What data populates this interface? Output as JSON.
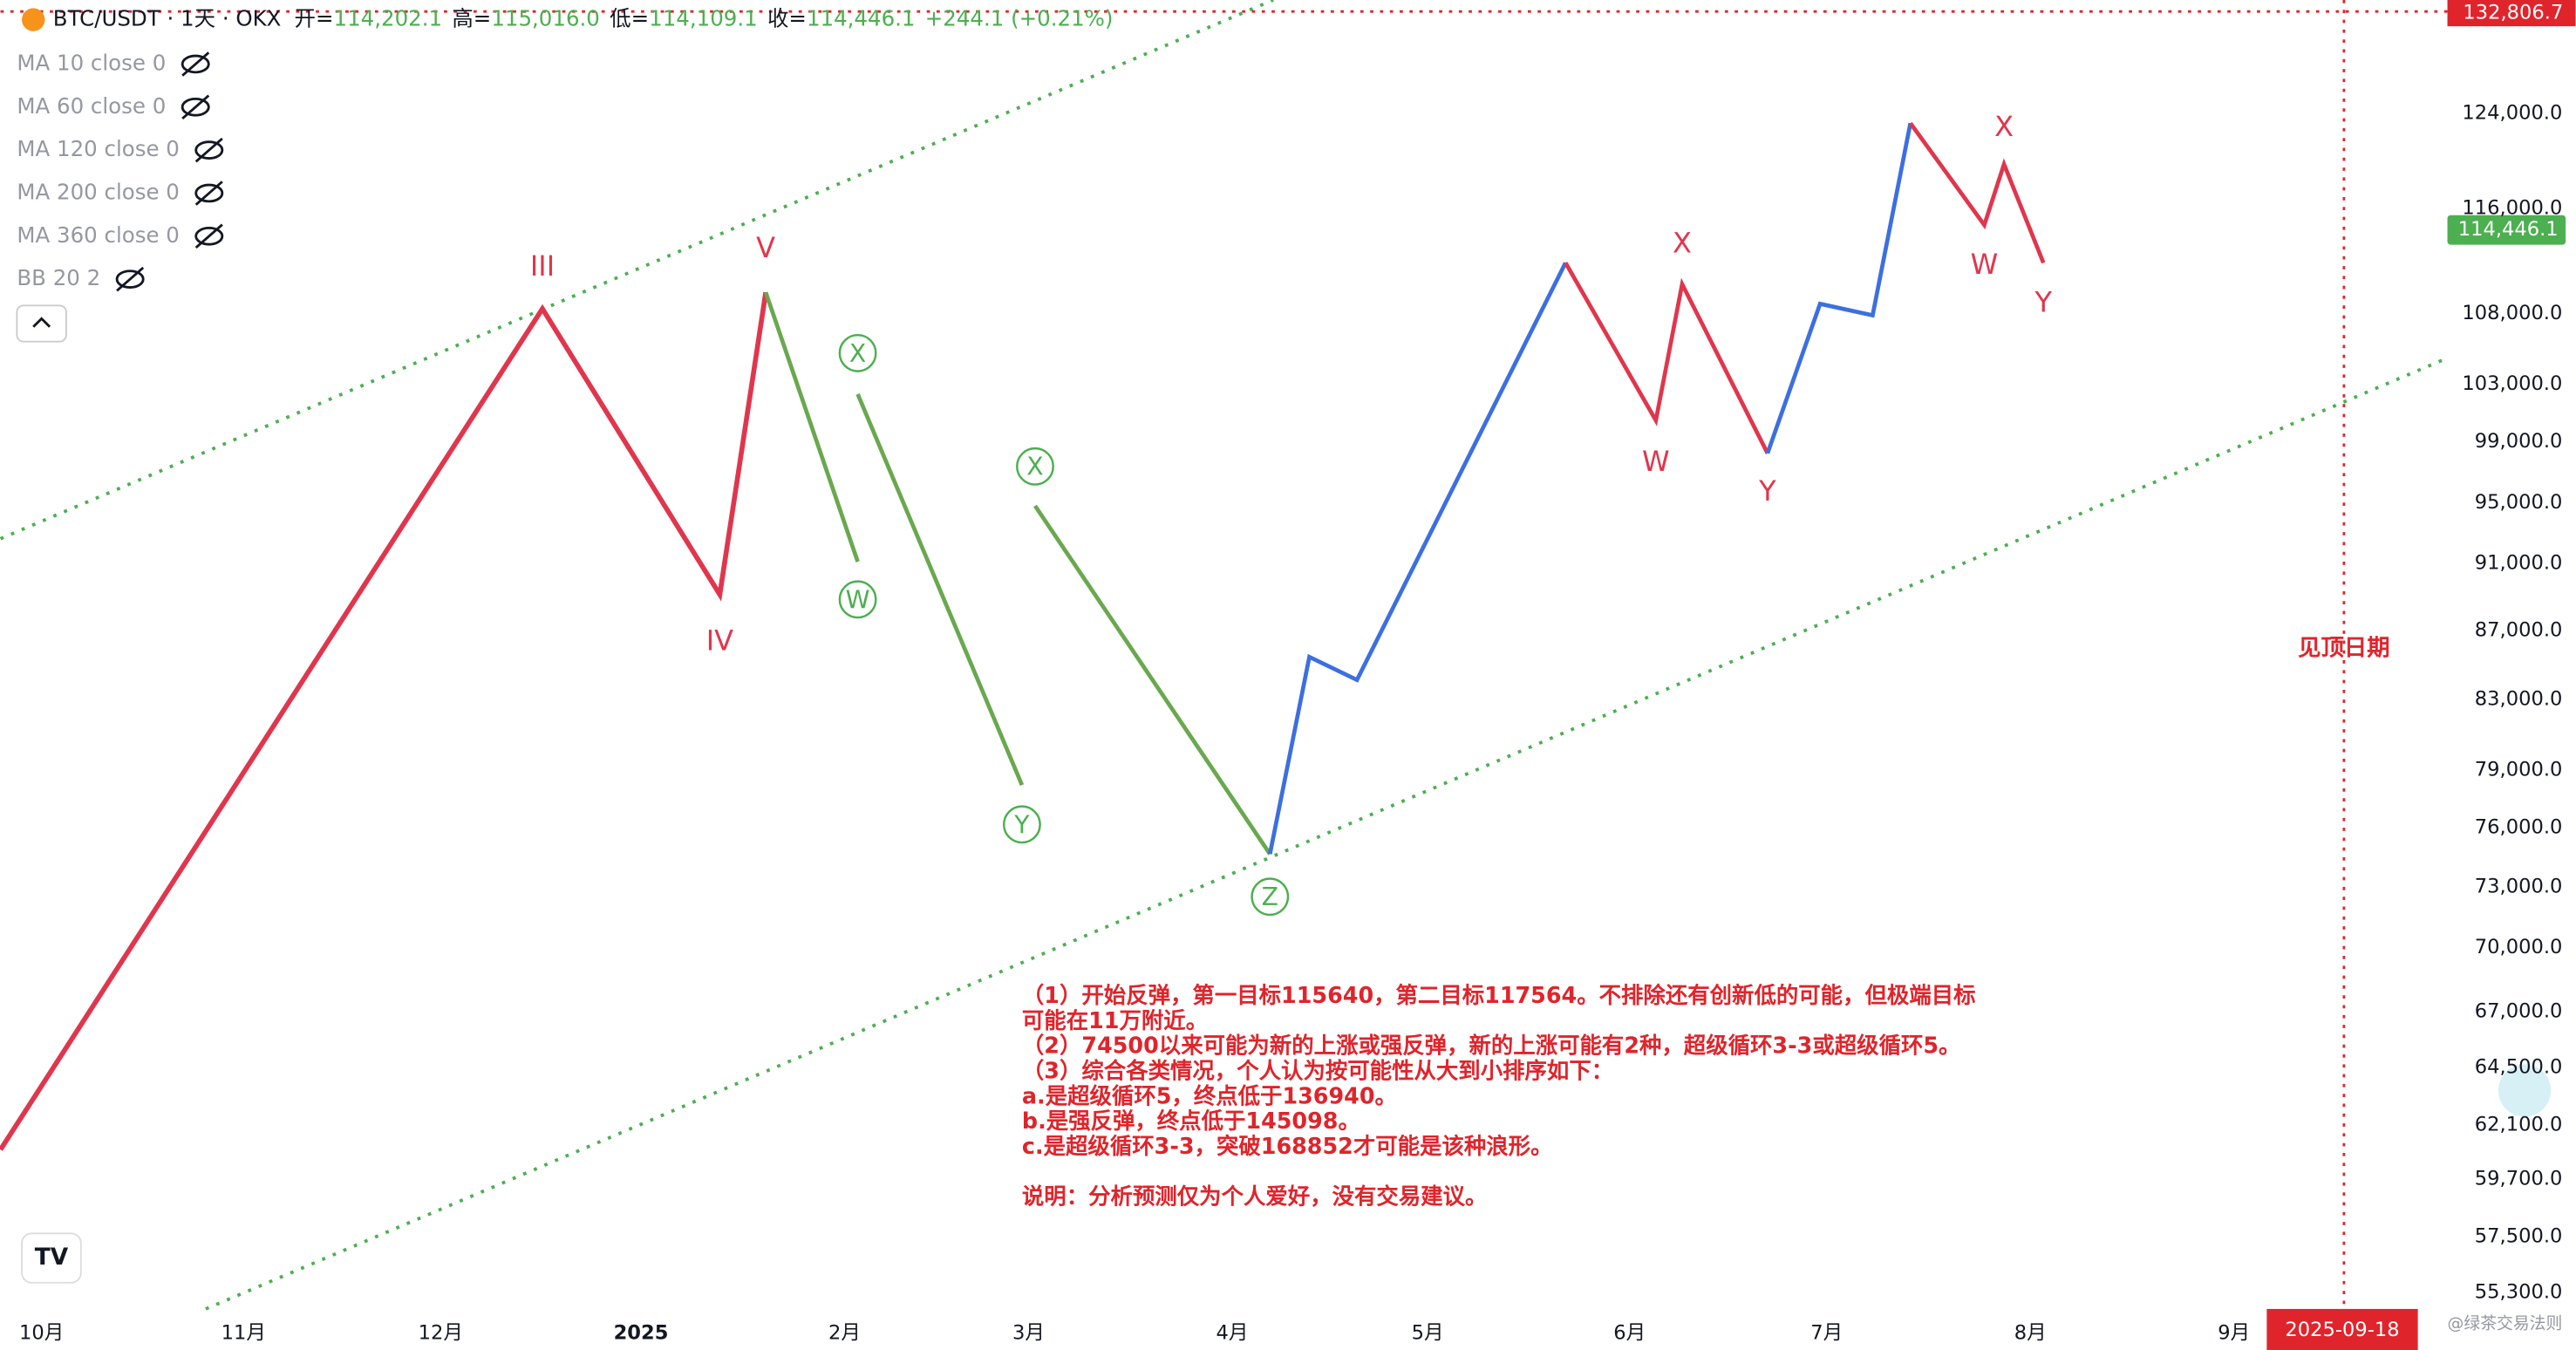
{
  "header": {
    "symbol": "BTC/USDT · 1天 · OKX",
    "open_label": "开=",
    "open": "114,202.1",
    "high_label": "高=",
    "high": "115,016.0",
    "low_label": "低=",
    "low": "114,109.1",
    "close_label": "收=",
    "close": "114,446.1",
    "change": "+244.1 (+0.21%)"
  },
  "indicators": [
    "MA 10 close 0",
    "MA 60 close 0",
    "MA 120 close 0",
    "MA 200 close 0",
    "MA 360 close 0",
    "BB 20 2"
  ],
  "price_axis": {
    "high_marker": "132,806.7",
    "last_price": "114,446.1",
    "labels": [
      "124,000.0",
      "116,000.0",
      "108,000.0",
      "103,000.0",
      "99,000.0",
      "95,000.0",
      "91,000.0",
      "87,000.0",
      "83,000.0",
      "79,000.0",
      "76,000.0",
      "73,000.0",
      "70,000.0",
      "67,000.0",
      "64,500.0",
      "62,100.0",
      "59,700.0",
      "57,500.0",
      "55,300.0"
    ]
  },
  "time_axis": {
    "labels": [
      "10月",
      "11月",
      "12月",
      "2025",
      "2月",
      "3月",
      "4月",
      "5月",
      "6月",
      "7月",
      "8月",
      "9月"
    ],
    "date_marker": "2025-09-18"
  },
  "wave_labels": [
    "III",
    "V",
    "IV",
    "W",
    "X",
    "X",
    "Y",
    "Z",
    "X",
    "W",
    "Y",
    "X",
    "W",
    "Y"
  ],
  "side_note": "见顶日期",
  "annotation": [
    "（1）开始反弹，第一目标115640，第二目标117564。不排除还有创新低的可能，但极端目标",
    "可能在11万附近。",
    "（2）74500以来可能为新的上涨或强反弹，新的上涨可能有2种，超级循环3-3或超级循环5。",
    "（3）综合各类情况，个人认为按可能性从大到小排序如下：",
    "a.是超级循环5，终点低于136940。",
    "b.是强反弹，终点低于145098。",
    "c.是超级循环3-3，突破168852才可能是该种浪形。",
    "",
    "说明：分析预测仅为个人爱好，没有交易建议。"
  ],
  "watermark": "@绿茶交易法则"
}
